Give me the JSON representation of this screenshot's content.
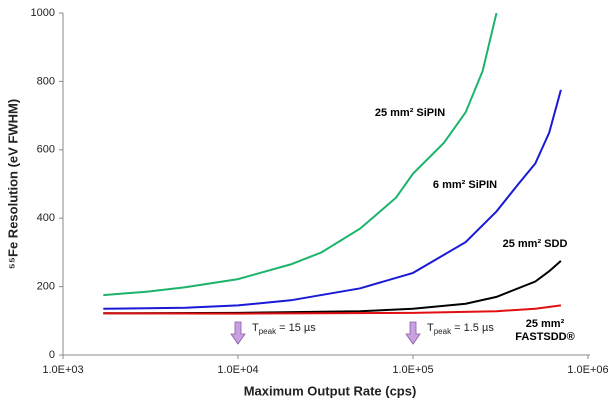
{
  "chart_data": {
    "type": "line",
    "xlabel": "Maximum Output Rate (cps)",
    "ylabel": "⁵⁵Fe Resolution (eV FWHM)",
    "xscale": "log",
    "xlim": [
      1000,
      1000000
    ],
    "ylim": [
      0,
      1000
    ],
    "xticks": [
      {
        "value": 1000,
        "label": "1.0E+03"
      },
      {
        "value": 10000,
        "label": "1.0E+04"
      },
      {
        "value": 100000,
        "label": "1.0E+05"
      },
      {
        "value": 1000000,
        "label": "1.0E+06"
      }
    ],
    "yticks": [
      0,
      200,
      400,
      600,
      800,
      1000
    ],
    "series": [
      {
        "name": "25 mm² SiPIN",
        "color": "#1db36b",
        "x": [
          1700,
          2000,
          3000,
          5000,
          10000,
          20000,
          30000,
          50000,
          80000,
          100000,
          150000,
          200000,
          250000,
          300000
        ],
        "values": [
          175,
          178,
          185,
          198,
          222,
          265,
          300,
          370,
          460,
          530,
          620,
          710,
          830,
          1000
        ]
      },
      {
        "name": "6 mm² SiPIN",
        "color": "#1a1ad6",
        "x": [
          1700,
          5000,
          10000,
          20000,
          50000,
          100000,
          200000,
          300000,
          400000,
          500000,
          600000,
          700000
        ],
        "values": [
          135,
          138,
          145,
          160,
          195,
          240,
          330,
          420,
          500,
          560,
          650,
          775
        ]
      },
      {
        "name": "25 mm² SDD",
        "color": "#000000",
        "x": [
          1700,
          10000,
          50000,
          100000,
          200000,
          300000,
          500000,
          600000,
          700000
        ],
        "values": [
          122,
          123,
          128,
          135,
          150,
          170,
          215,
          245,
          275
        ]
      },
      {
        "name": "25 mm² FASTSDD®",
        "color": "#e01010",
        "x": [
          1700,
          10000,
          100000,
          300000,
          500000,
          700000
        ],
        "values": [
          122,
          121,
          123,
          128,
          135,
          145
        ]
      }
    ],
    "annotations": [
      {
        "x": 10000,
        "base": "T",
        "sub": "peak",
        "rest": " = 15 µs"
      },
      {
        "x": 100000,
        "base": "T",
        "sub": "peak",
        "rest": " = 1.5 µs"
      }
    ]
  }
}
